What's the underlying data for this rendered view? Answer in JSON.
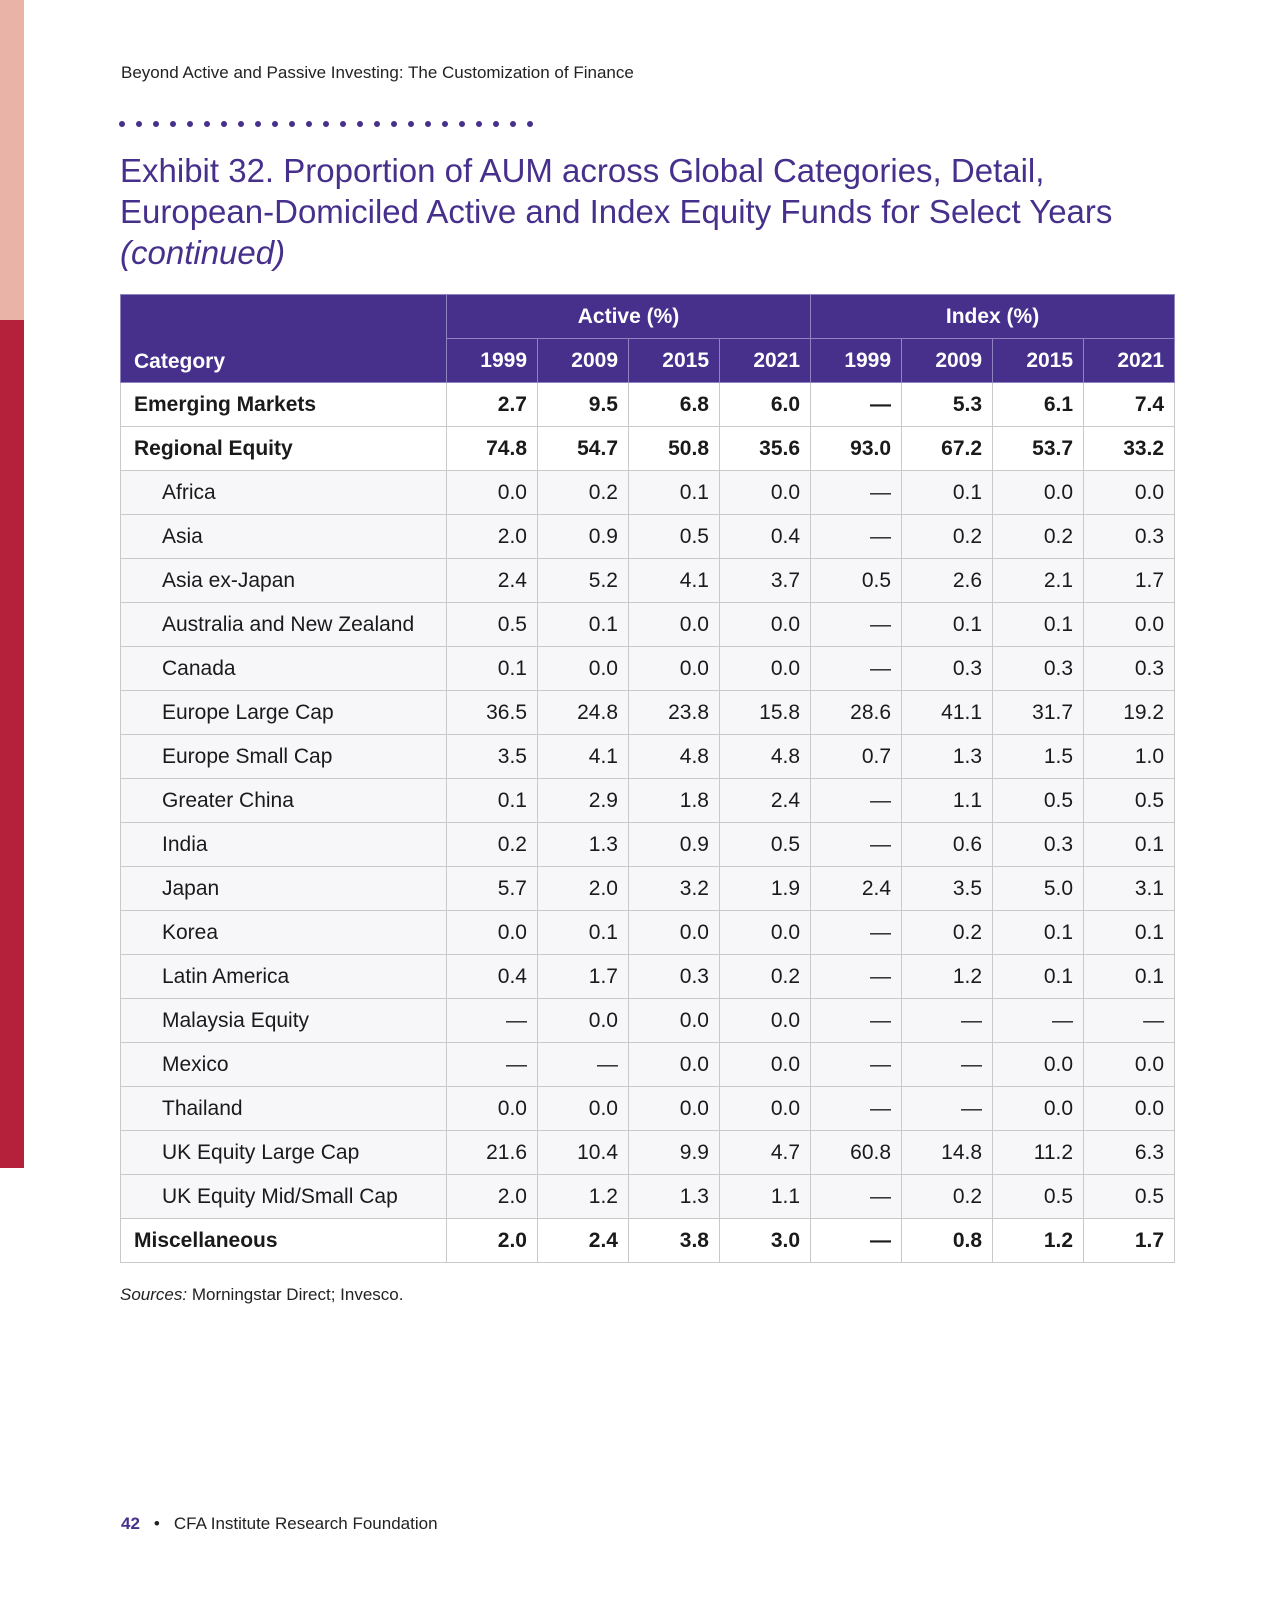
{
  "page": {
    "running_header": "Beyond Active and Passive Investing: The Customization of Finance",
    "title_main": "Exhibit 32. Proportion of AUM across Global Categories, Detail, European-Domiciled Active and Index Equity Funds for Select Years",
    "title_suffix": "(continued)",
    "sources_label": "Sources:",
    "sources_text": "Morningstar Direct; Invesco.",
    "page_number": "42",
    "footer_bullet": "•",
    "footer_text": "CFA Institute Research Foundation"
  },
  "table": {
    "category_header": "Category",
    "group_active": "Active (%)",
    "group_index": "Index (%)",
    "years": [
      "1999",
      "2009",
      "2015",
      "2021",
      "1999",
      "2009",
      "2015",
      "2021"
    ],
    "rows": [
      {
        "name": "Emerging Markets",
        "values": [
          "2.7",
          "9.5",
          "6.8",
          "6.0",
          "—",
          "5.3",
          "6.1",
          "7.4"
        ]
      },
      {
        "name": "Regional Equity",
        "values": [
          "74.8",
          "54.7",
          "50.8",
          "35.6",
          "93.0",
          "67.2",
          "53.7",
          "33.2"
        ]
      },
      {
        "name": "Africa",
        "values": [
          "0.0",
          "0.2",
          "0.1",
          "0.0",
          "—",
          "0.1",
          "0.0",
          "0.0"
        ]
      },
      {
        "name": "Asia",
        "values": [
          "2.0",
          "0.9",
          "0.5",
          "0.4",
          "—",
          "0.2",
          "0.2",
          "0.3"
        ]
      },
      {
        "name": "Asia ex-Japan",
        "values": [
          "2.4",
          "5.2",
          "4.1",
          "3.7",
          "0.5",
          "2.6",
          "2.1",
          "1.7"
        ]
      },
      {
        "name": "Australia and New Zealand",
        "values": [
          "0.5",
          "0.1",
          "0.0",
          "0.0",
          "—",
          "0.1",
          "0.1",
          "0.0"
        ]
      },
      {
        "name": "Canada",
        "values": [
          "0.1",
          "0.0",
          "0.0",
          "0.0",
          "—",
          "0.3",
          "0.3",
          "0.3"
        ]
      },
      {
        "name": "Europe Large Cap",
        "values": [
          "36.5",
          "24.8",
          "23.8",
          "15.8",
          "28.6",
          "41.1",
          "31.7",
          "19.2"
        ]
      },
      {
        "name": "Europe Small Cap",
        "values": [
          "3.5",
          "4.1",
          "4.8",
          "4.8",
          "0.7",
          "1.3",
          "1.5",
          "1.0"
        ]
      },
      {
        "name": "Greater China",
        "values": [
          "0.1",
          "2.9",
          "1.8",
          "2.4",
          "—",
          "1.1",
          "0.5",
          "0.5"
        ]
      },
      {
        "name": "India",
        "values": [
          "0.2",
          "1.3",
          "0.9",
          "0.5",
          "—",
          "0.6",
          "0.3",
          "0.1"
        ]
      },
      {
        "name": "Japan",
        "values": [
          "5.7",
          "2.0",
          "3.2",
          "1.9",
          "2.4",
          "3.5",
          "5.0",
          "3.1"
        ]
      },
      {
        "name": "Korea",
        "values": [
          "0.0",
          "0.1",
          "0.0",
          "0.0",
          "—",
          "0.2",
          "0.1",
          "0.1"
        ]
      },
      {
        "name": "Latin America",
        "values": [
          "0.4",
          "1.7",
          "0.3",
          "0.2",
          "—",
          "1.2",
          "0.1",
          "0.1"
        ]
      },
      {
        "name": "Malaysia Equity",
        "values": [
          "—",
          "0.0",
          "0.0",
          "0.0",
          "—",
          "—",
          "—",
          "—"
        ]
      },
      {
        "name": "Mexico",
        "values": [
          "—",
          "—",
          "0.0",
          "0.0",
          "—",
          "—",
          "0.0",
          "0.0"
        ]
      },
      {
        "name": "Thailand",
        "values": [
          "0.0",
          "0.0",
          "0.0",
          "0.0",
          "—",
          "—",
          "0.0",
          "0.0"
        ]
      },
      {
        "name": "UK Equity Large Cap",
        "values": [
          "21.6",
          "10.4",
          "9.9",
          "4.7",
          "60.8",
          "14.8",
          "11.2",
          "6.3"
        ]
      },
      {
        "name": "UK Equity Mid/Small Cap",
        "values": [
          "2.0",
          "1.2",
          "1.3",
          "1.1",
          "—",
          "0.2",
          "0.5",
          "0.5"
        ]
      },
      {
        "name": "Miscellaneous",
        "values": [
          "2.0",
          "2.4",
          "3.8",
          "3.0",
          "—",
          "0.8",
          "1.2",
          "1.7"
        ]
      }
    ]
  },
  "colors": {
    "accent_purple": "#46308c",
    "side_bar_light": "#e9b3a8",
    "side_bar_dark": "#b5213a"
  }
}
